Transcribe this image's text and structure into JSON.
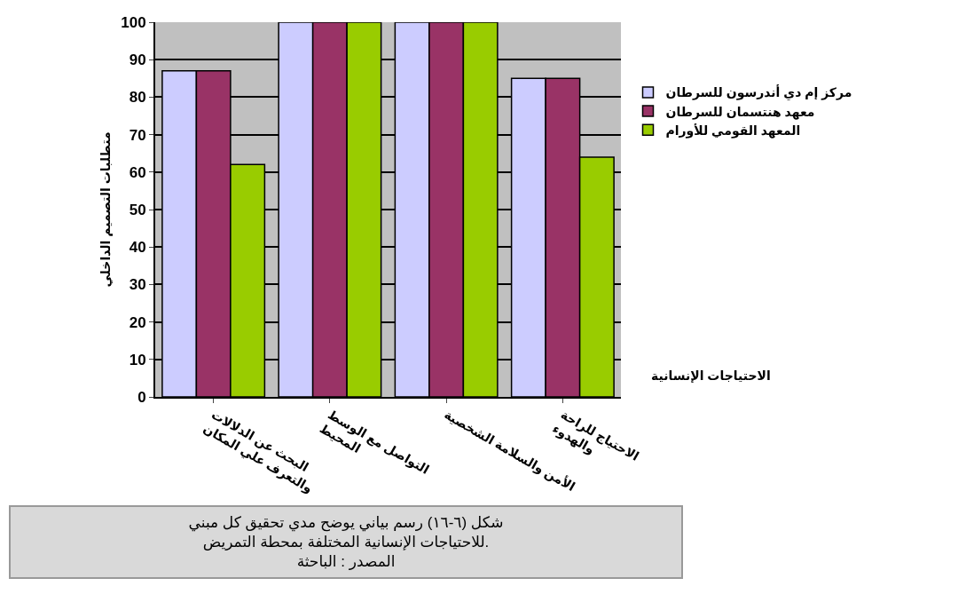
{
  "chart_data": {
    "type": "bar",
    "categories": [
      "البحث عن الدلالات والتعرف علي المكان",
      "التواصل مع الوسط المحيط",
      "الأمن والسلامة الشخصية",
      "الاحتياج للراحة والهدوء"
    ],
    "series": [
      {
        "name": "مركز إم دي أندرسون للسرطان",
        "color": "#ccccff",
        "values": [
          87,
          100,
          100,
          85
        ]
      },
      {
        "name": "معهد هنتسمان للسرطان",
        "color": "#993366",
        "values": [
          87,
          100,
          100,
          85
        ]
      },
      {
        "name": "المعهد القومي للأورام",
        "color": "#99cc00",
        "values": [
          62,
          100,
          100,
          64
        ]
      }
    ],
    "xlabel": "الاحتياجات الإنسانية",
    "ylabel": "متطلبات التصميم الداخلي",
    "ylim": [
      0,
      100
    ],
    "yticks": [
      0,
      10,
      20,
      30,
      40,
      50,
      60,
      70,
      80,
      90,
      100
    ],
    "grid": "y",
    "legend": "right",
    "annotations": [
      "شكل (٦-١٦) رسم بياني يوضح مدي تحقيق كل مبني للاحتياجات الإنسانية المختلفة بمحطة التمريض.",
      "المصدر : الباحثة"
    ]
  }
}
